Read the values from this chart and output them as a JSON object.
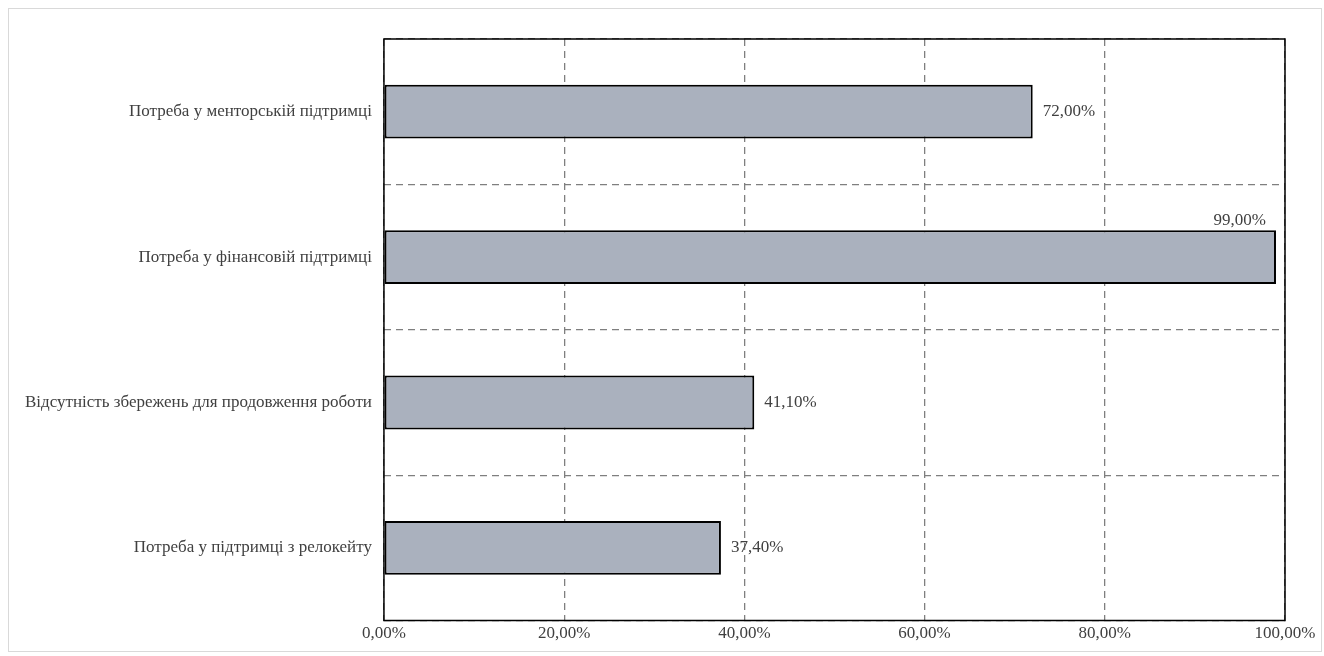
{
  "chart_data": {
    "type": "bar",
    "orientation": "horizontal",
    "categories": [
      "Потреба у менторській підтримці",
      "Потреба у фінансовій підтримці",
      "Відсутність збережень для продовження роботи",
      "Потреба у підтримці з релокейту"
    ],
    "values": [
      72.0,
      99.0,
      41.1,
      37.4
    ],
    "value_labels": [
      "72,00%",
      "99,00%",
      "41,10%",
      "37,40%"
    ],
    "color": "#aab1be",
    "xlim": [
      0,
      100
    ],
    "xticks": [
      {
        "value": 0,
        "label": "0,00%"
      },
      {
        "value": 20,
        "label": "20,00%"
      },
      {
        "value": 40,
        "label": "40,00%"
      },
      {
        "value": 60,
        "label": "60,00%"
      },
      {
        "value": 80,
        "label": "80,00%"
      },
      {
        "value": 100,
        "label": "100,00%"
      }
    ],
    "grid": true,
    "line_style": "dashed",
    "legend": false
  }
}
